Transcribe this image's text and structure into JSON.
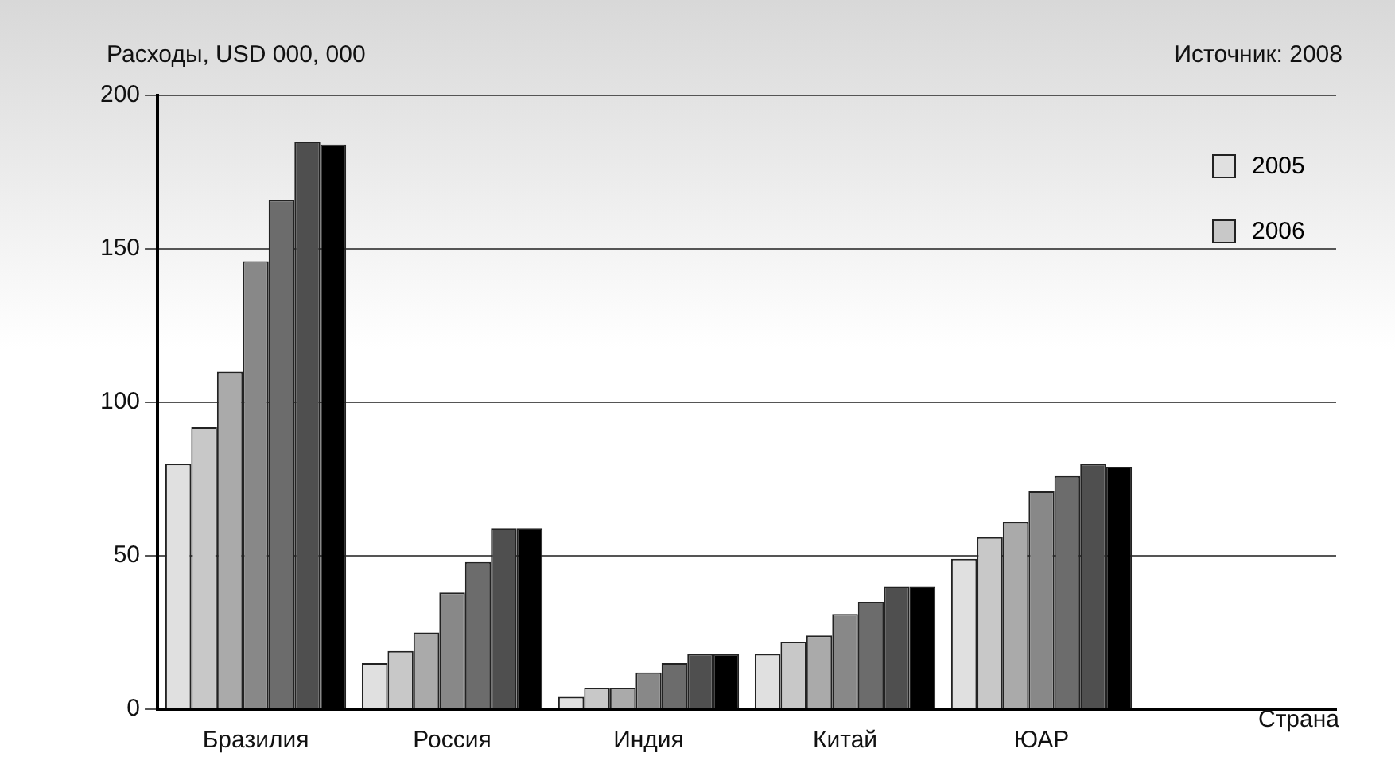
{
  "chart_data": {
    "type": "bar",
    "ylabel": "Расходы, USD 000, 000",
    "xlabel": "Страна",
    "annotations": [
      "Источник: 2008"
    ],
    "categories": [
      "Бразилия",
      "Россия",
      "Индия",
      "Китай",
      "ЮАР",
      null
    ],
    "series": [
      {
        "name": "2005",
        "color": "#e0e0e0",
        "values": [
          80,
          15,
          4,
          18,
          49,
          null
        ]
      },
      {
        "name": "2006",
        "color": "#c8c8c8",
        "values": [
          92,
          19,
          7,
          22,
          56,
          null
        ]
      },
      {
        "color": "#aaaaaa",
        "values": [
          110,
          25,
          7,
          24,
          61,
          null
        ]
      },
      {
        "color": "#888888",
        "values": [
          146,
          38,
          12,
          31,
          71,
          null
        ]
      },
      {
        "color": "#6c6c6c",
        "values": [
          166,
          48,
          15,
          35,
          76,
          null
        ]
      },
      {
        "color": "#4f4f4f",
        "values": [
          185,
          59,
          18,
          40,
          80,
          null
        ]
      },
      {
        "color": "#000000",
        "values": [
          184,
          59,
          18,
          40,
          79,
          null
        ]
      }
    ],
    "ylim": [
      0,
      200
    ],
    "yticks": [
      0,
      50,
      100,
      150,
      200
    ],
    "grid": "y",
    "legend": "top right"
  }
}
